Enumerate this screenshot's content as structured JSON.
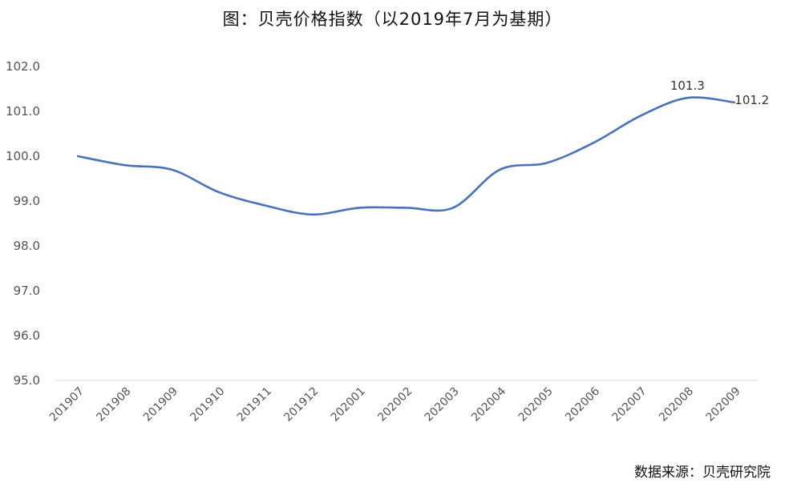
{
  "chart_data": {
    "type": "line",
    "title": "图：贝壳价格指数（以2019年7月为基期）",
    "xlabel": "",
    "ylabel": "",
    "categories": [
      "201907",
      "201908",
      "201909",
      "201910",
      "201911",
      "201912",
      "202001",
      "202002",
      "202003",
      "202004",
      "202005",
      "202006",
      "202007",
      "202008",
      "202009"
    ],
    "series": [
      {
        "values": [
          100.0,
          99.8,
          99.7,
          99.2,
          98.9,
          98.7,
          98.85,
          98.85,
          98.85,
          99.7,
          99.85,
          100.3,
          100.9,
          101.3,
          101.2
        ]
      }
    ],
    "ylim": [
      95.0,
      102.0
    ],
    "yticks": [
      "95.0",
      "96.0",
      "97.0",
      "98.0",
      "99.0",
      "100.0",
      "101.0",
      "102.0"
    ],
    "data_labels": [
      {
        "index": 13,
        "text": "101.3"
      },
      {
        "index": 14,
        "text": "101.2"
      }
    ],
    "grid": false,
    "line_color": "#4a72b8",
    "source": "数据来源：贝壳研究院"
  }
}
